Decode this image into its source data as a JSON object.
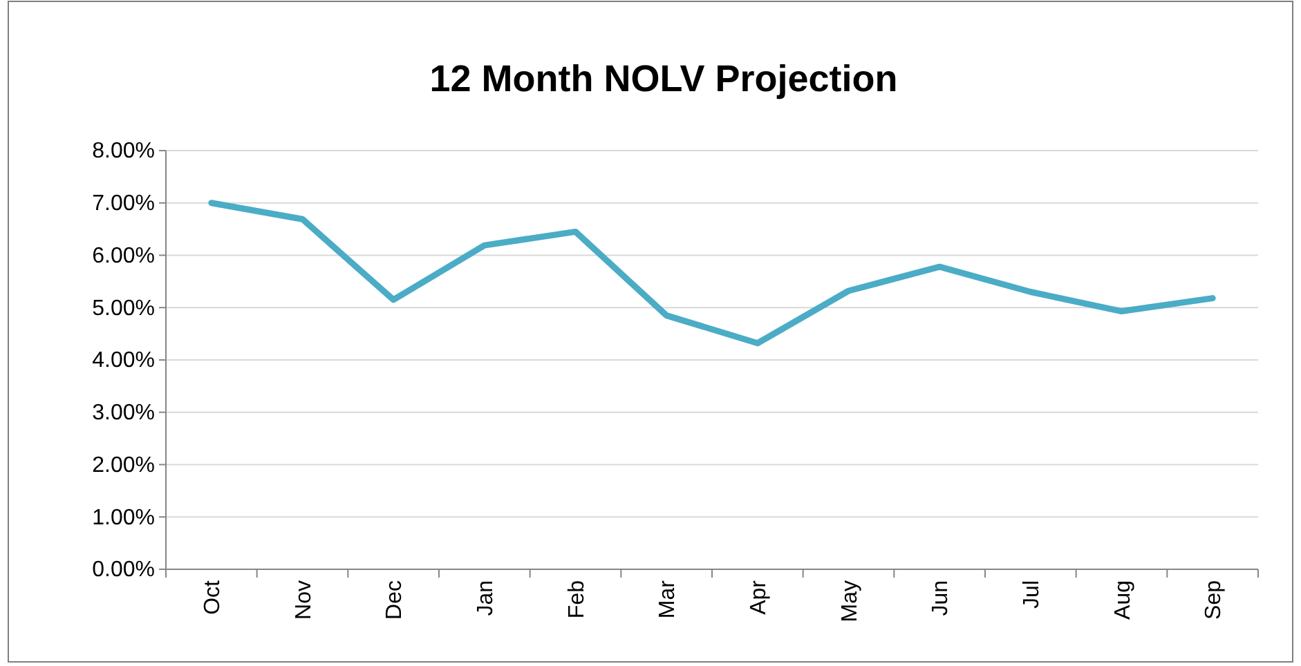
{
  "chart_data": {
    "type": "line",
    "title": "12 Month NOLV Projection",
    "categories": [
      "Oct",
      "Nov",
      "Dec",
      "Jan",
      "Feb",
      "Mar",
      "Apr",
      "May",
      "Jun",
      "Jul",
      "Aug",
      "Sep"
    ],
    "series": [
      {
        "color": "#4bacc6",
        "values": [
          7.0,
          6.69,
          5.15,
          6.19,
          6.45,
          4.85,
          4.32,
          5.32,
          5.78,
          5.3,
          4.93,
          5.18
        ]
      }
    ],
    "ylim": [
      0,
      8
    ],
    "yticks": [
      {
        "value": 0,
        "label": "0.00%"
      },
      {
        "value": 1,
        "label": "1.00%"
      },
      {
        "value": 2,
        "label": "2.00%"
      },
      {
        "value": 3,
        "label": "3.00%"
      },
      {
        "value": 4,
        "label": "4.00%"
      },
      {
        "value": 5,
        "label": "5.00%"
      },
      {
        "value": 6,
        "label": "6.00%"
      },
      {
        "value": 7,
        "label": "7.00%"
      },
      {
        "value": 8,
        "label": "8.00%"
      }
    ],
    "grid": "y",
    "marker": "none",
    "line_style": "solid"
  }
}
